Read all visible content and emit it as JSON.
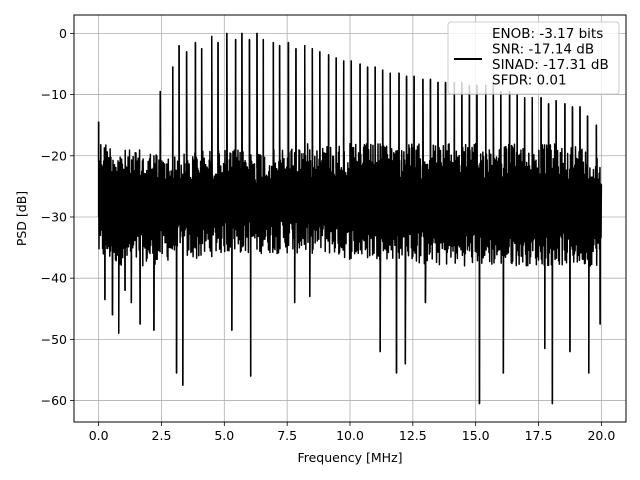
{
  "chart_data": {
    "type": "line",
    "title": "",
    "xlabel": "Frequency [MHz]",
    "ylabel": "PSD [dB]",
    "xlim": [
      -0.98,
      20.98
    ],
    "ylim": [
      -63.5,
      3.0
    ],
    "xticks": [
      0.0,
      2.5,
      5.0,
      7.5,
      10.0,
      12.5,
      15.0,
      17.5,
      20.0
    ],
    "xtick_labels": [
      "0.0",
      "2.5",
      "5.0",
      "7.5",
      "10.0",
      "12.5",
      "15.0",
      "17.5",
      "20.0"
    ],
    "yticks": [
      0,
      -10,
      -20,
      -30,
      -40,
      -50,
      -60
    ],
    "ytick_labels": [
      "0",
      "−10",
      "−20",
      "−30",
      "−40",
      "−50",
      "−60"
    ],
    "grid": true,
    "legend_position": "top-right",
    "series": [
      {
        "name": "",
        "color": "#000000",
        "noise_band_x": [
          0.0,
          1.0,
          2.0,
          3.0,
          4.0,
          5.0,
          6.0,
          7.0,
          8.0,
          9.0,
          10.0,
          11.0,
          12.0,
          13.0,
          14.0,
          15.0,
          16.0,
          17.0,
          18.0,
          19.0,
          20.0
        ],
        "noise_band_upper": [
          -17,
          -19,
          -19,
          -20,
          -19,
          -19,
          -19,
          -19,
          -18,
          -18,
          -18,
          -18,
          -18,
          -18,
          -18,
          -18,
          -18,
          -18,
          -18,
          -18,
          -20
        ],
        "noise_band_lower": [
          -37,
          -38,
          -38,
          -37,
          -37,
          -36,
          -36,
          -36,
          -36,
          -36,
          -37,
          -37,
          -37,
          -38,
          -38,
          -38,
          -38,
          -38,
          -38,
          -38,
          -38
        ],
        "spurs": [
          {
            "x": 2.45,
            "y": -9.5
          },
          {
            "x": 2.95,
            "y": -5.5
          },
          {
            "x": 3.2,
            "y": -2.0
          },
          {
            "x": 3.5,
            "y": -3.0
          },
          {
            "x": 3.85,
            "y": -1.5
          },
          {
            "x": 4.1,
            "y": -2.5
          },
          {
            "x": 4.5,
            "y": -0.5
          },
          {
            "x": 4.75,
            "y": -1.5
          },
          {
            "x": 5.1,
            "y": 0.0
          },
          {
            "x": 5.45,
            "y": -1.0
          },
          {
            "x": 5.7,
            "y": 0.0
          },
          {
            "x": 6.0,
            "y": -1.0
          },
          {
            "x": 6.3,
            "y": 0.0
          },
          {
            "x": 6.55,
            "y": -1.0
          },
          {
            "x": 6.95,
            "y": -1.5
          },
          {
            "x": 7.2,
            "y": -2.0
          },
          {
            "x": 7.55,
            "y": -1.5
          },
          {
            "x": 7.85,
            "y": -2.5
          },
          {
            "x": 8.2,
            "y": -2.0
          },
          {
            "x": 8.5,
            "y": -2.5
          },
          {
            "x": 8.8,
            "y": -3.0
          },
          {
            "x": 9.15,
            "y": -3.5
          },
          {
            "x": 9.45,
            "y": -4.0
          },
          {
            "x": 9.75,
            "y": -4.5
          },
          {
            "x": 10.05,
            "y": -4.5
          },
          {
            "x": 10.4,
            "y": -5.0
          },
          {
            "x": 10.7,
            "y": -5.5
          },
          {
            "x": 11.0,
            "y": -5.5
          },
          {
            "x": 11.3,
            "y": -6.0
          },
          {
            "x": 11.6,
            "y": -6.5
          },
          {
            "x": 11.95,
            "y": -6.5
          },
          {
            "x": 12.25,
            "y": -7.0
          },
          {
            "x": 12.55,
            "y": -7.0
          },
          {
            "x": 12.9,
            "y": -7.5
          },
          {
            "x": 13.2,
            "y": -7.5
          },
          {
            "x": 13.5,
            "y": -8.0
          },
          {
            "x": 13.8,
            "y": -8.0
          },
          {
            "x": 14.15,
            "y": -8.0
          },
          {
            "x": 14.45,
            "y": -8.0
          },
          {
            "x": 14.75,
            "y": -8.5
          },
          {
            "x": 15.05,
            "y": -8.5
          },
          {
            "x": 15.4,
            "y": -8.5
          },
          {
            "x": 15.7,
            "y": -8.0
          },
          {
            "x": 16.0,
            "y": -9.5
          },
          {
            "x": 16.35,
            "y": -9.5
          },
          {
            "x": 16.65,
            "y": -10.0
          },
          {
            "x": 16.95,
            "y": -10.5
          },
          {
            "x": 17.25,
            "y": -10.5
          },
          {
            "x": 17.6,
            "y": -10.5
          },
          {
            "x": 17.9,
            "y": -11.5
          },
          {
            "x": 18.2,
            "y": -11.0
          },
          {
            "x": 18.55,
            "y": -11.5
          },
          {
            "x": 18.85,
            "y": -12.0
          },
          {
            "x": 19.15,
            "y": -12.0
          },
          {
            "x": 19.45,
            "y": -13.5
          },
          {
            "x": 19.8,
            "y": -15.0
          }
        ],
        "dips": [
          {
            "x": 0.0,
            "y": -14.5
          },
          {
            "x": 0.25,
            "y": -43.5
          },
          {
            "x": 0.55,
            "y": -46.0
          },
          {
            "x": 0.8,
            "y": -49.0
          },
          {
            "x": 1.05,
            "y": -42.0
          },
          {
            "x": 1.3,
            "y": -44.0
          },
          {
            "x": 1.65,
            "y": -47.5
          },
          {
            "x": 2.2,
            "y": -48.5
          },
          {
            "x": 3.1,
            "y": -55.5
          },
          {
            "x": 3.35,
            "y": -57.5
          },
          {
            "x": 5.3,
            "y": -48.5
          },
          {
            "x": 6.05,
            "y": -56.0
          },
          {
            "x": 7.8,
            "y": -44.0
          },
          {
            "x": 8.4,
            "y": -43.0
          },
          {
            "x": 11.2,
            "y": -52.0
          },
          {
            "x": 11.85,
            "y": -55.5
          },
          {
            "x": 12.2,
            "y": -54.0
          },
          {
            "x": 13.0,
            "y": -44.0
          },
          {
            "x": 15.15,
            "y": -60.5
          },
          {
            "x": 16.1,
            "y": -55.5
          },
          {
            "x": 17.75,
            "y": -51.5
          },
          {
            "x": 18.05,
            "y": -60.5
          },
          {
            "x": 18.75,
            "y": -52.0
          },
          {
            "x": 19.5,
            "y": -55.5
          },
          {
            "x": 19.95,
            "y": -47.5
          }
        ]
      }
    ],
    "legend": {
      "lines": [
        "ENOB: -3.17 bits",
        "SNR: -17.14 dB",
        "SINAD: -17.31 dB",
        "SFDR: 0.01"
      ]
    }
  }
}
